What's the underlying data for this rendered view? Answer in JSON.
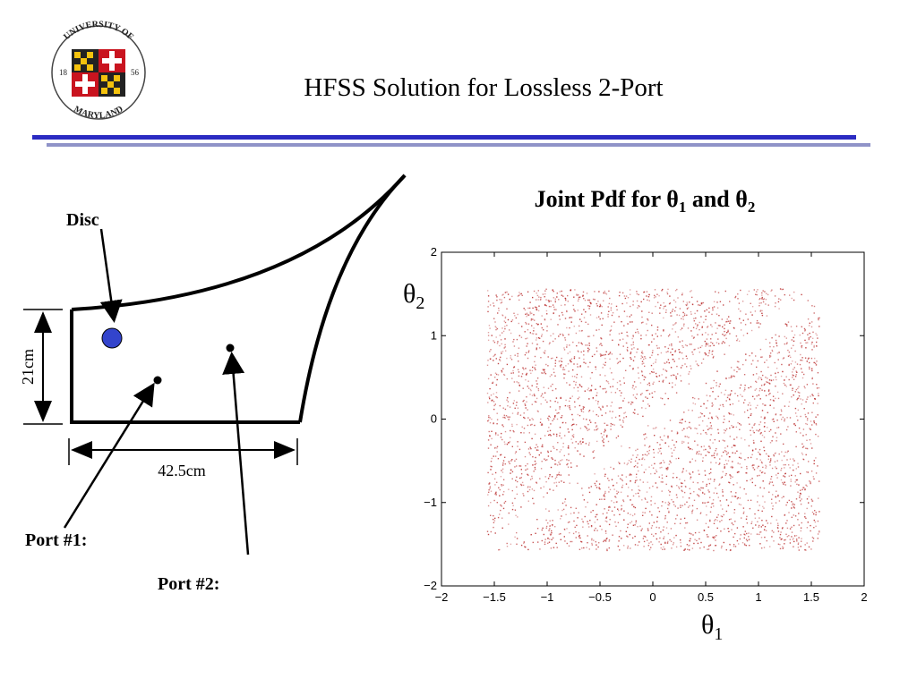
{
  "slide": {
    "title": "HFSS Solution for Lossless 2-Port"
  },
  "logo": {
    "text_top": "UNIVERSITY OF",
    "text_bottom": "MARYLAND",
    "year_left": "18",
    "year_right": "56"
  },
  "colors": {
    "rule_primary": "#2b2bc2",
    "rule_secondary": "#8f93c8",
    "disc": "#3344cc",
    "scatter": "#b51f1f"
  },
  "geometry_diagram": {
    "disc_label": "Disc",
    "port1_label": "Port #1:",
    "port2_label": "Port #2:",
    "height_dim": "21cm",
    "width_dim": "42.5cm"
  },
  "chart_data": {
    "type": "scatter",
    "title_main": "Joint Pdf for ",
    "title_theta": "θ",
    "title_sub1": "1",
    "title_and": " and ",
    "title_sub2": "2",
    "xlabel_symbol": "θ",
    "xlabel_sub": "1",
    "ylabel_symbol": "θ",
    "ylabel_sub": "2",
    "xlim": [
      -2,
      2
    ],
    "ylim": [
      -2,
      2
    ],
    "x_ticks": [
      -2,
      -1.5,
      -1,
      -0.5,
      0,
      0.5,
      1,
      1.5,
      2
    ],
    "x_tick_labels": [
      "−2",
      "−1.5",
      "−1",
      "−0.5",
      "0",
      "0.5",
      "1",
      "1.5",
      "2"
    ],
    "y_ticks": [
      -2,
      -1,
      0,
      1,
      2
    ],
    "y_tick_labels": [
      "−2",
      "−1",
      "0",
      "1",
      "2"
    ],
    "grid": false,
    "legend": "none",
    "point_region": {
      "x_range": [
        -1.57,
        1.57
      ],
      "y_range": [
        -1.57,
        1.57
      ]
    },
    "gap_line": {
      "slope": 1,
      "intercept": 0
    }
  }
}
